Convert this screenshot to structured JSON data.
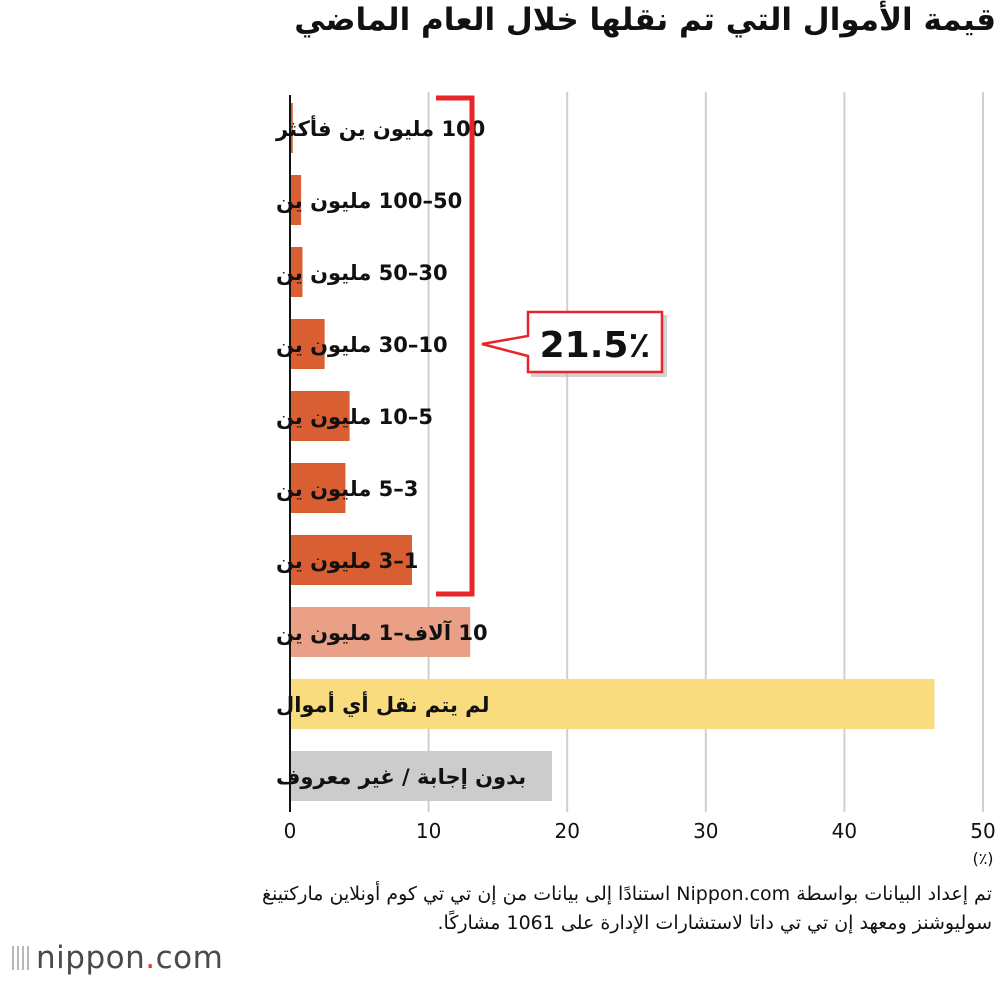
{
  "chart_data": {
    "type": "bar",
    "orientation": "horizontal",
    "title": "قيمة الأموال التي تم نقلها خلال العام الماضي",
    "categories": [
      "100 مليون ين فأكثر",
      "50–100 مليون ين",
      "30–50 مليون ين",
      "10–30 مليون ين",
      "5–10 مليون ين",
      "3–5 مليون ين",
      "1–3 مليون ين",
      "10 آلاف–1 مليون ين",
      "لم يتم نقل أي أموال",
      "بدون إجابة / غير معروف"
    ],
    "values": [
      0.2,
      0.8,
      0.9,
      2.5,
      4.3,
      4.0,
      8.8,
      13.0,
      46.5,
      18.9
    ],
    "bar_colors": [
      "#d95f33",
      "#d95f33",
      "#d95f33",
      "#d95f33",
      "#d95f33",
      "#d95f33",
      "#d95f33",
      "#e9a087",
      "#f9dc7d",
      "#cccccc"
    ],
    "xlim": [
      0,
      50
    ],
    "xticks": [
      0,
      10,
      20,
      30,
      40,
      50
    ],
    "x_unit_label": "(٪)",
    "grid": true,
    "annotation": {
      "text": "21.5٪",
      "bracket_first_category": 0,
      "bracket_last_category": 6,
      "bracket_color": "#e8252a"
    }
  },
  "source_note": "تم إعداد البيانات بواسطة Nippon.com استنادًا إلى بيانات من إن تي تي كوم أونلاين ماركتينغ سوليوشنز ومعهد إن تي تي داتا لاستشارات الإدارة على 1061 مشاركًا.",
  "logo": {
    "name": "nippon",
    "dot": ".",
    "suffix": "com"
  }
}
